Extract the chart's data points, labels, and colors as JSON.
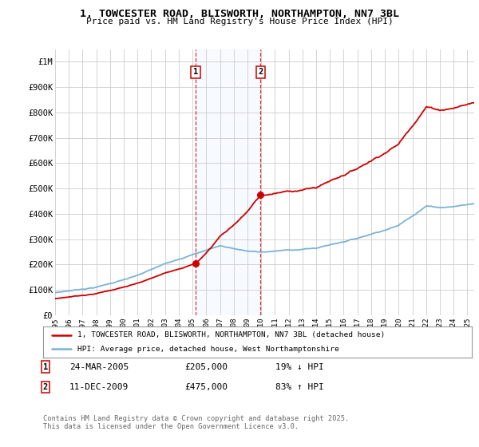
{
  "title": "1, TOWCESTER ROAD, BLISWORTH, NORTHAMPTON, NN7 3BL",
  "subtitle": "Price paid vs. HM Land Registry's House Price Index (HPI)",
  "ylabel_ticks": [
    "£0",
    "£100K",
    "£200K",
    "£300K",
    "£400K",
    "£500K",
    "£600K",
    "£700K",
    "£800K",
    "£900K",
    "£1M"
  ],
  "ytick_values": [
    0,
    100000,
    200000,
    300000,
    400000,
    500000,
    600000,
    700000,
    800000,
    900000,
    1000000
  ],
  "ylim": [
    0,
    1050000
  ],
  "sale1_date_label": "24-MAR-2005",
  "sale1_price": "£205,000",
  "sale1_hpi": "19% ↓ HPI",
  "sale1_x": 2005.23,
  "sale1_price_val": 205000,
  "sale2_date_label": "11-DEC-2009",
  "sale2_price": "£475,000",
  "sale2_hpi": "83% ↑ HPI",
  "sale2_x": 2009.95,
  "sale2_price_val": 475000,
  "hpi_color": "#7ab3d4",
  "price_color": "#cc0000",
  "shade_color": "#ddeeff",
  "legend_label1": "1, TOWCESTER ROAD, BLISWORTH, NORTHAMPTON, NN7 3BL (detached house)",
  "legend_label2": "HPI: Average price, detached house, West Northamptonshire",
  "footer": "Contains HM Land Registry data © Crown copyright and database right 2025.\nThis data is licensed under the Open Government Licence v3.0.",
  "background_color": "#ffffff",
  "grid_color": "#cccccc",
  "xmin": 1995,
  "xmax": 2025.5
}
